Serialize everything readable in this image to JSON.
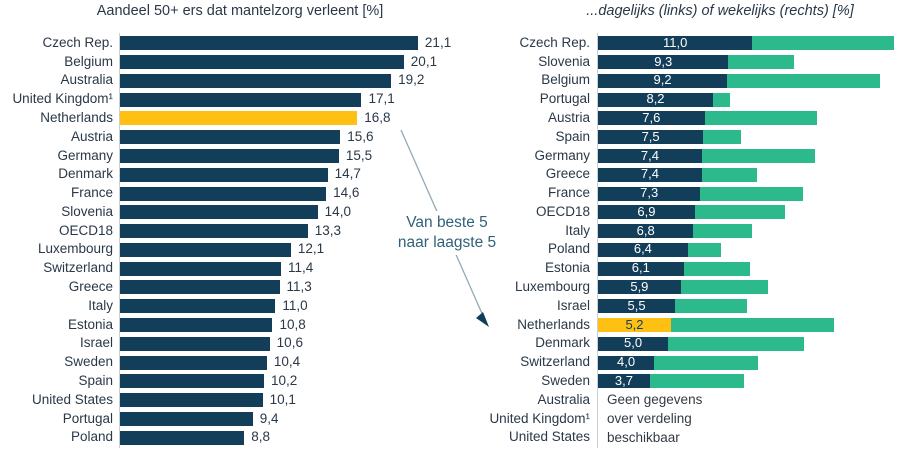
{
  "colors": {
    "navy": "#123E5A",
    "green": "#2CBA8D",
    "yellow": "#FDC013",
    "text": "#2A3847",
    "annotation_text": "#30617A",
    "arrow_line": "#93A9B6",
    "axis_line": "#C8D0D6",
    "inbar_text": "#FFFFFF"
  },
  "annotation": {
    "line1": "Van beste 5",
    "line2": "naar laagste 5"
  },
  "chart_data": [
    {
      "type": "bar",
      "orientation": "horizontal",
      "title": "Aandeel 50+ ers dat mantelzorg verleent [%]",
      "unit": "%",
      "xlim": [
        0,
        21.1
      ],
      "highlight_country": "Netherlands",
      "rows": [
        {
          "country": "Czech Rep.",
          "value": 21.1,
          "label": "21,1"
        },
        {
          "country": "Belgium",
          "value": 20.1,
          "label": "20,1"
        },
        {
          "country": "Australia",
          "value": 19.2,
          "label": "19,2"
        },
        {
          "country": "United Kingdom¹",
          "value": 17.1,
          "label": "17,1"
        },
        {
          "country": "Netherlands",
          "value": 16.8,
          "label": "16,8",
          "highlight": true
        },
        {
          "country": "Austria",
          "value": 15.6,
          "label": "15,6"
        },
        {
          "country": "Germany",
          "value": 15.5,
          "label": "15,5"
        },
        {
          "country": "Denmark",
          "value": 14.7,
          "label": "14,7"
        },
        {
          "country": "France",
          "value": 14.6,
          "label": "14,6"
        },
        {
          "country": "Slovenia",
          "value": 14.0,
          "label": "14,0"
        },
        {
          "country": "OECD18",
          "value": 13.3,
          "label": "13,3"
        },
        {
          "country": "Luxembourg",
          "value": 12.1,
          "label": "12,1"
        },
        {
          "country": "Switzerland",
          "value": 11.4,
          "label": "11,4"
        },
        {
          "country": "Greece",
          "value": 11.3,
          "label": "11,3"
        },
        {
          "country": "Italy",
          "value": 11.0,
          "label": "11,0"
        },
        {
          "country": "Estonia",
          "value": 10.8,
          "label": "10,8"
        },
        {
          "country": "Israel",
          "value": 10.6,
          "label": "10,6"
        },
        {
          "country": "Sweden",
          "value": 10.4,
          "label": "10,4"
        },
        {
          "country": "Spain",
          "value": 10.2,
          "label": "10,2"
        },
        {
          "country": "United States",
          "value": 10.1,
          "label": "10,1"
        },
        {
          "country": "Portugal",
          "value": 9.4,
          "label": "9,4"
        },
        {
          "country": "Poland",
          "value": 8.8,
          "label": "8,8"
        }
      ]
    },
    {
      "type": "bar",
      "orientation": "horizontal",
      "stacked": true,
      "title": "...dagelijks (links) of wekelijks (rechts) [%]",
      "unit": "%",
      "xlim": [
        0,
        21.1
      ],
      "series_names": [
        "dagelijks",
        "wekelijks"
      ],
      "highlight_country": "Netherlands",
      "no_data_note_lines": [
        "Geen gegevens",
        "over verdeling",
        "beschikbaar"
      ],
      "rows": [
        {
          "country": "Czech Rep.",
          "daily": 11.0,
          "daily_label": "11,0",
          "weekly": 10.1
        },
        {
          "country": "Slovenia",
          "daily": 9.3,
          "daily_label": "9,3",
          "weekly": 4.7
        },
        {
          "country": "Belgium",
          "daily": 9.2,
          "daily_label": "9,2",
          "weekly": 10.9
        },
        {
          "country": "Portugal",
          "daily": 8.2,
          "daily_label": "8,2",
          "weekly": 1.2
        },
        {
          "country": "Austria",
          "daily": 7.6,
          "daily_label": "7,6",
          "weekly": 8.0
        },
        {
          "country": "Spain",
          "daily": 7.5,
          "daily_label": "7,5",
          "weekly": 2.7
        },
        {
          "country": "Germany",
          "daily": 7.4,
          "daily_label": "7,4",
          "weekly": 8.1
        },
        {
          "country": "Greece",
          "daily": 7.4,
          "daily_label": "7,4",
          "weekly": 3.9
        },
        {
          "country": "France",
          "daily": 7.3,
          "daily_label": "7,3",
          "weekly": 7.3
        },
        {
          "country": "OECD18",
          "daily": 6.9,
          "daily_label": "6,9",
          "weekly": 6.4
        },
        {
          "country": "Italy",
          "daily": 6.8,
          "daily_label": "6,8",
          "weekly": 4.2
        },
        {
          "country": "Poland",
          "daily": 6.4,
          "daily_label": "6,4",
          "weekly": 2.4
        },
        {
          "country": "Estonia",
          "daily": 6.1,
          "daily_label": "6,1",
          "weekly": 4.7
        },
        {
          "country": "Luxembourg",
          "daily": 5.9,
          "daily_label": "5,9",
          "weekly": 6.2
        },
        {
          "country": "Israel",
          "daily": 5.5,
          "daily_label": "5,5",
          "weekly": 5.1
        },
        {
          "country": "Netherlands",
          "daily": 5.2,
          "daily_label": "5,2",
          "weekly": 11.6,
          "highlight": true
        },
        {
          "country": "Denmark",
          "daily": 5.0,
          "daily_label": "5,0",
          "weekly": 9.7
        },
        {
          "country": "Switzerland",
          "daily": 4.0,
          "daily_label": "4,0",
          "weekly": 7.4
        },
        {
          "country": "Sweden",
          "daily": 3.7,
          "daily_label": "3,7",
          "weekly": 6.7
        },
        {
          "country": "Australia",
          "no_data": true
        },
        {
          "country": "United Kingdom¹",
          "no_data": true
        },
        {
          "country": "United States",
          "no_data": true
        }
      ]
    }
  ]
}
